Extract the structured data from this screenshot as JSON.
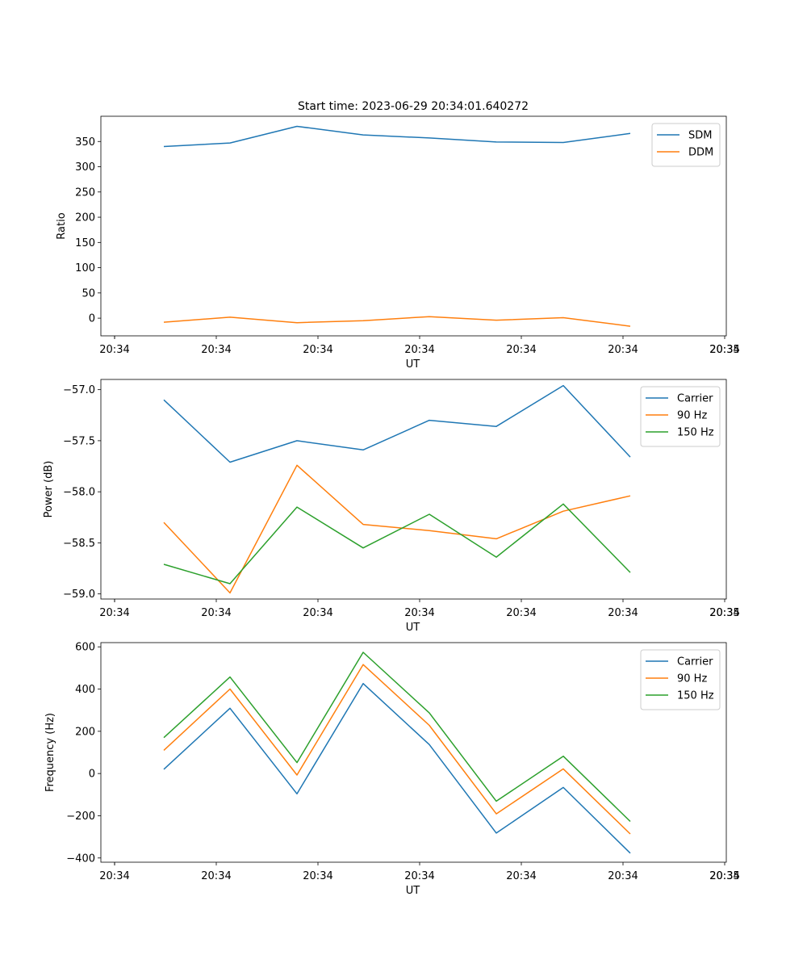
{
  "chart_data": [
    {
      "type": "line",
      "title": "Start time: 2023-06-29 20:34:01.640272",
      "xlabel": "UT",
      "ylabel": "Ratio",
      "x_tick_labels": [
        "20:34",
        "20:34",
        "20:34",
        "20:34",
        "20:34",
        "20:34",
        "20:34",
        "20:35"
      ],
      "yticks": [
        0,
        50,
        100,
        150,
        200,
        250,
        300,
        350
      ],
      "ylim": [
        -35,
        400
      ],
      "legend": "top-right",
      "series": [
        {
          "name": "SDM",
          "color": "#1f77b4",
          "values": [
            340,
            347,
            380,
            363,
            357,
            349,
            348,
            366
          ]
        },
        {
          "name": "DDM",
          "color": "#ff7f0e",
          "values": [
            -8,
            2,
            -9,
            -5,
            3,
            -4,
            1,
            -16
          ]
        }
      ]
    },
    {
      "type": "line",
      "title": "",
      "xlabel": "UT",
      "ylabel": "Power (dB)",
      "x_tick_labels": [
        "20:34",
        "20:34",
        "20:34",
        "20:34",
        "20:34",
        "20:34",
        "20:34",
        "20:35"
      ],
      "yticks": [
        -59.0,
        -58.5,
        -58.0,
        -57.5,
        -57.0
      ],
      "ylim": [
        -59.05,
        -56.9
      ],
      "legend": "top-right",
      "series": [
        {
          "name": "Carrier",
          "color": "#1f77b4",
          "values": [
            -57.1,
            -57.71,
            -57.5,
            -57.59,
            -57.3,
            -57.36,
            -56.96,
            -57.66
          ]
        },
        {
          "name": "90 Hz",
          "color": "#ff7f0e",
          "values": [
            -58.3,
            -58.99,
            -57.74,
            -58.32,
            -58.38,
            -58.46,
            -58.19,
            -58.04
          ]
        },
        {
          "name": "150 Hz",
          "color": "#2ca02c",
          "values": [
            -58.71,
            -58.9,
            -58.15,
            -58.55,
            -58.22,
            -58.64,
            -58.12,
            -58.79
          ]
        }
      ]
    },
    {
      "type": "line",
      "title": "",
      "xlabel": "UT",
      "ylabel": "Frequency (Hz)",
      "x_tick_labels": [
        "20:34",
        "20:34",
        "20:34",
        "20:34",
        "20:34",
        "20:34",
        "20:34",
        "20:35"
      ],
      "yticks": [
        -400,
        -200,
        0,
        200,
        400,
        600
      ],
      "ylim": [
        -420,
        620
      ],
      "legend": "top-right",
      "series": [
        {
          "name": "Carrier",
          "color": "#1f77b4",
          "values": [
            20,
            309,
            -96,
            426,
            137,
            -282,
            -66,
            -377
          ]
        },
        {
          "name": "90 Hz",
          "color": "#ff7f0e",
          "values": [
            110,
            400,
            -7,
            516,
            228,
            -191,
            22,
            -286
          ]
        },
        {
          "name": "150 Hz",
          "color": "#2ca02c",
          "values": [
            170,
            457,
            52,
            574,
            287,
            -131,
            82,
            -227
          ]
        }
      ]
    }
  ]
}
